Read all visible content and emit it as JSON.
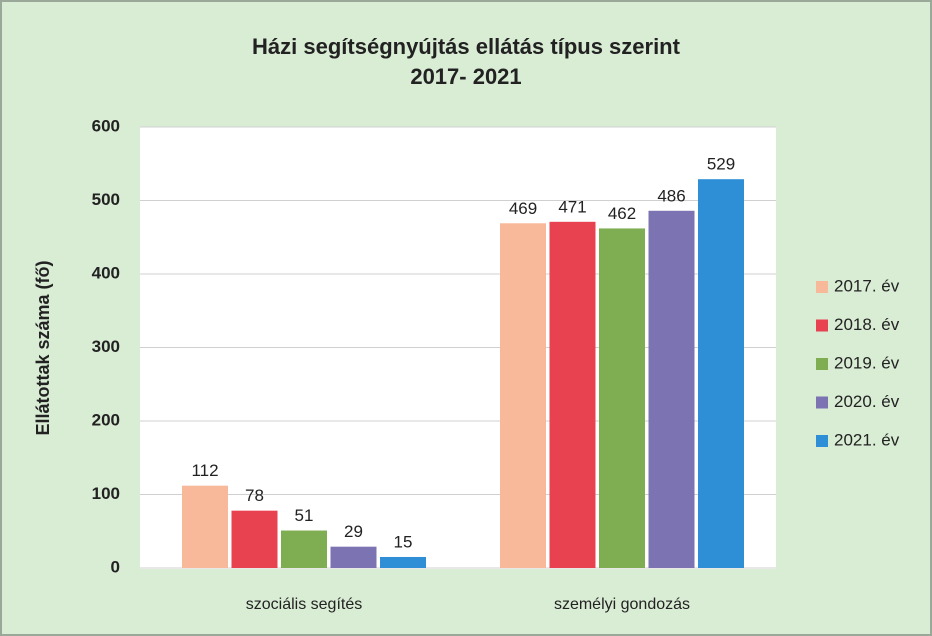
{
  "chart_data": {
    "type": "bar",
    "title": "Házi segítségnyújtás ellátás típus szerint",
    "subtitle": "2017- 2021",
    "y_label": "Ellátottak száma (fő)",
    "categories": [
      "szociális segítés",
      "személyi gondozás"
    ],
    "series": [
      {
        "name": "2017. év",
        "color": "#f8b89a",
        "values": [
          112,
          469
        ]
      },
      {
        "name": "2018. év",
        "color": "#e8414f",
        "values": [
          78,
          471
        ]
      },
      {
        "name": "2019. év",
        "color": "#7fae52",
        "values": [
          51,
          462
        ]
      },
      {
        "name": "2020. év",
        "color": "#7c73b2",
        "values": [
          29,
          486
        ]
      },
      {
        "name": "2021. év",
        "color": "#2f8fd6",
        "values": [
          15,
          529
        ]
      }
    ],
    "ylim": [
      0,
      600
    ],
    "yticks": [
      0,
      100,
      200,
      300,
      400,
      500,
      600
    ],
    "grid": true,
    "legend": "right"
  }
}
